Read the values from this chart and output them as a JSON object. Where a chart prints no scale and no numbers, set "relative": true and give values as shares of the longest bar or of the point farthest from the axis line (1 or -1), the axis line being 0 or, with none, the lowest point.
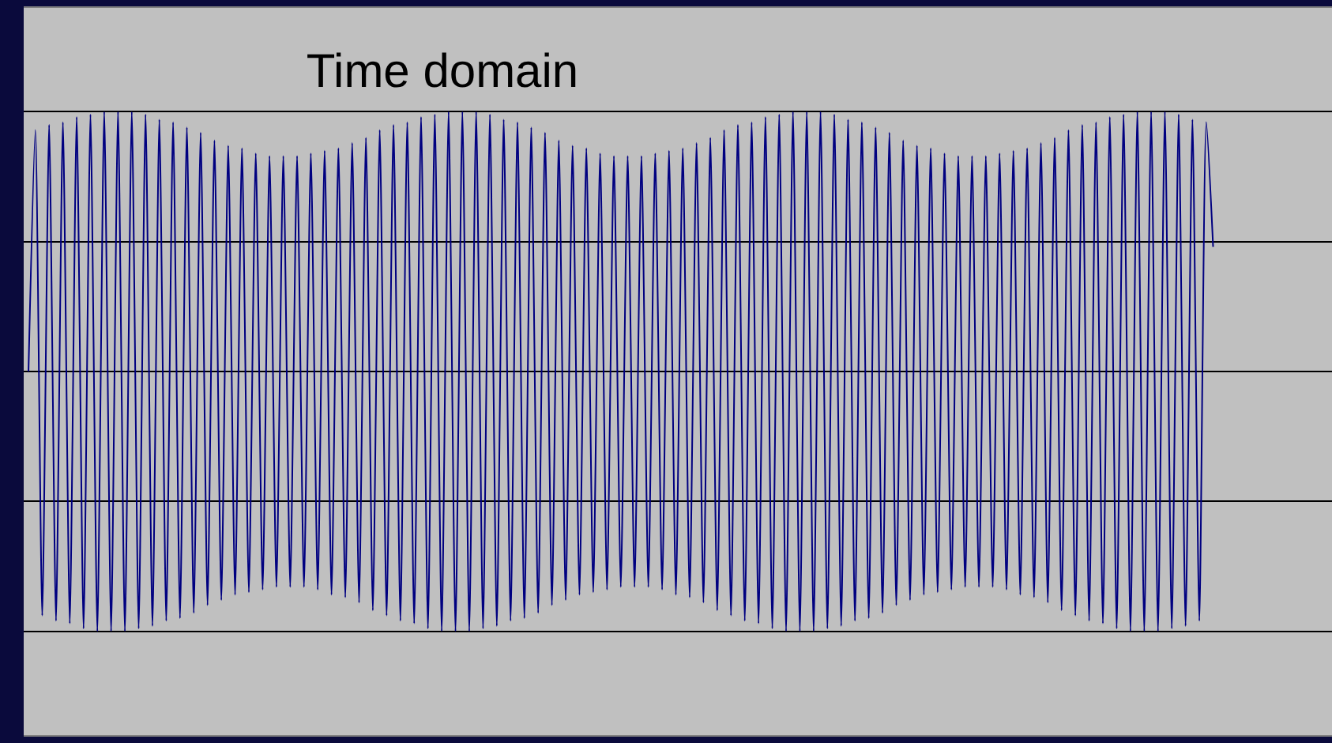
{
  "chart_data": {
    "type": "line",
    "title": "Time domain",
    "relative": true,
    "grid": true,
    "color": "#000080",
    "categories": [
      null,
      null,
      null,
      null,
      null,
      null,
      null,
      null,
      null,
      null,
      null,
      null,
      null,
      null,
      null,
      null,
      null,
      null,
      null,
      null,
      null,
      null,
      null,
      null,
      null,
      null,
      null,
      null,
      null,
      null,
      null,
      null,
      null,
      null,
      null,
      null,
      null,
      null,
      null,
      null,
      null,
      null,
      null,
      null,
      null,
      null,
      null,
      null,
      null,
      null,
      null,
      null,
      null,
      null,
      null,
      null,
      null,
      null,
      null,
      null,
      null,
      null,
      null,
      null,
      null,
      null,
      null,
      null,
      null,
      null,
      null,
      null,
      null,
      null,
      null,
      null,
      null,
      null,
      null,
      null,
      null,
      null,
      null,
      null,
      null,
      null,
      null,
      null,
      null,
      null,
      null,
      null,
      null,
      null,
      null,
      null,
      null,
      null,
      null,
      null,
      null,
      null,
      null,
      null,
      null,
      null,
      null,
      null,
      null,
      null,
      null,
      null,
      null,
      null,
      null,
      null,
      null,
      null,
      null,
      null,
      null,
      null,
      null,
      null,
      null,
      null,
      null,
      null,
      null,
      null,
      null,
      null,
      null,
      null,
      null,
      null,
      null,
      null,
      null,
      null,
      null,
      null,
      null,
      null,
      null,
      null,
      null,
      null,
      null,
      null,
      null,
      null,
      null,
      null,
      null,
      null,
      null,
      null,
      null,
      null,
      null,
      null,
      null,
      null,
      null,
      null,
      null,
      null,
      null,
      null,
      null,
      null,
      null
    ],
    "values": [
      0,
      0.93,
      -0.94,
      0.95,
      -0.96,
      0.96,
      -0.97,
      0.98,
      -0.99,
      0.99,
      -1,
      1,
      -1,
      1,
      -1,
      1,
      -0.99,
      0.99,
      -0.98,
      0.97,
      -0.96,
      0.96,
      -0.95,
      0.94,
      -0.93,
      0.92,
      -0.9,
      0.89,
      -0.88,
      0.87,
      -0.86,
      0.86,
      -0.85,
      0.84,
      -0.84,
      0.83,
      -0.83,
      0.83,
      -0.83,
      0.83,
      -0.83,
      0.84,
      -0.84,
      0.85,
      -0.86,
      0.86,
      -0.87,
      0.88,
      -0.89,
      0.9,
      -0.92,
      0.93,
      -0.94,
      0.95,
      -0.96,
      0.96,
      -0.97,
      0.98,
      -0.99,
      0.99,
      -1,
      1,
      -1,
      1,
      -1,
      1,
      -0.99,
      0.99,
      -0.98,
      0.97,
      -0.96,
      0.96,
      -0.95,
      0.94,
      -0.93,
      0.92,
      -0.9,
      0.89,
      -0.88,
      0.87,
      -0.86,
      0.86,
      -0.85,
      0.84,
      -0.84,
      0.83,
      -0.83,
      0.83,
      -0.83,
      0.83,
      -0.83,
      0.84,
      -0.84,
      0.85,
      -0.86,
      0.86,
      -0.87,
      0.88,
      -0.89,
      0.9,
      -0.92,
      0.93,
      -0.94,
      0.95,
      -0.96,
      0.96,
      -0.97,
      0.98,
      -0.99,
      0.99,
      -1,
      1,
      -1,
      1,
      -1,
      1,
      -0.99,
      0.99,
      -0.98,
      0.97,
      -0.96,
      0.96,
      -0.95,
      0.94,
      -0.93,
      0.92,
      -0.9,
      0.89,
      -0.88,
      0.87,
      -0.86,
      0.86,
      -0.85,
      0.84,
      -0.84,
      0.83,
      -0.83,
      0.83,
      -0.83,
      0.83,
      -0.83,
      0.84,
      -0.84,
      0.85,
      -0.86,
      0.86,
      -0.87,
      0.88,
      -0.89,
      0.9,
      -0.92,
      0.93,
      -0.94,
      0.95,
      -0.96,
      0.96,
      -0.97,
      0.98,
      -0.99,
      0.99,
      -1,
      1,
      -1,
      1,
      -1,
      1,
      -0.99,
      0.99,
      -0.98,
      0.97,
      -0.96,
      0.96,
      0.48
    ]
  }
}
